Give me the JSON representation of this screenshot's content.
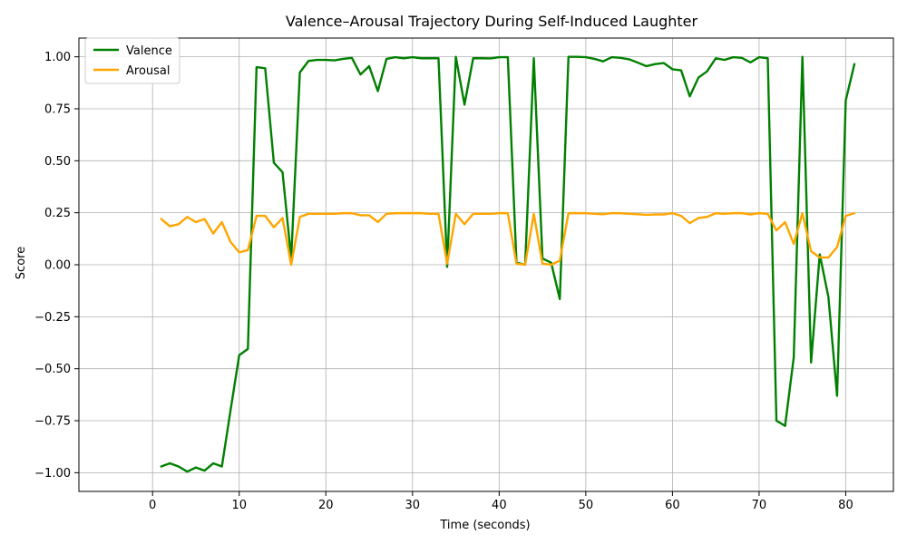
{
  "chart_data": {
    "type": "line",
    "title": "Valence–Arousal Trajectory During Self-Induced Laughter",
    "xlabel": "Time (seconds)",
    "ylabel": "Score",
    "xlim": [
      -8.5,
      85.5
    ],
    "ylim": [
      -1.09,
      1.09
    ],
    "xticks": [
      0,
      10,
      20,
      30,
      40,
      50,
      60,
      70,
      80
    ],
    "yticks": [
      -1.0,
      -0.75,
      -0.5,
      -0.25,
      0.0,
      0.25,
      0.5,
      0.75,
      1.0
    ],
    "xtick_labels": [
      "0",
      "10",
      "20",
      "30",
      "40",
      "50",
      "60",
      "70",
      "80"
    ],
    "ytick_labels": [
      "−1.00",
      "−0.75",
      "−0.50",
      "−0.25",
      "0.00",
      "0.25",
      "0.50",
      "0.75",
      "1.00"
    ],
    "grid": true,
    "legend_position": "top-left",
    "x": [
      1,
      2,
      3,
      4,
      5,
      6,
      7,
      8,
      9,
      10,
      11,
      12,
      13,
      14,
      15,
      16,
      17,
      18,
      19,
      20,
      21,
      22,
      23,
      24,
      25,
      26,
      27,
      28,
      29,
      30,
      31,
      32,
      33,
      34,
      35,
      36,
      37,
      38,
      39,
      40,
      41,
      42,
      43,
      44,
      45,
      46,
      47,
      48,
      49,
      50,
      51,
      52,
      53,
      54,
      55,
      56,
      57,
      58,
      59,
      60,
      61,
      62,
      63,
      64,
      65,
      66,
      67,
      68,
      69,
      70,
      71,
      72,
      73,
      74,
      75,
      76,
      77,
      78,
      79,
      80,
      81
    ],
    "series": [
      {
        "name": "Valence",
        "color": "#008000",
        "values": [
          -0.97,
          -0.955,
          -0.97,
          -0.995,
          -0.975,
          -0.99,
          -0.955,
          -0.97,
          -0.7,
          -0.435,
          -0.405,
          0.95,
          0.945,
          0.49,
          0.445,
          0.03,
          0.925,
          0.98,
          0.985,
          0.985,
          0.983,
          0.99,
          0.995,
          0.915,
          0.955,
          0.835,
          0.99,
          0.998,
          0.993,
          0.998,
          0.993,
          0.993,
          0.993,
          -0.01,
          1.0,
          0.77,
          0.993,
          0.993,
          0.992,
          0.998,
          0.998,
          0.01,
          0.0,
          0.993,
          0.03,
          0.01,
          -0.165,
          1.0,
          1.0,
          0.998,
          0.99,
          0.978,
          0.998,
          0.995,
          0.988,
          0.972,
          0.955,
          0.965,
          0.97,
          0.94,
          0.935,
          0.81,
          0.9,
          0.93,
          0.993,
          0.985,
          0.998,
          0.995,
          0.973,
          0.998,
          0.993,
          -0.75,
          -0.775,
          -0.445,
          1.0,
          -0.47,
          0.05,
          -0.155,
          -0.63,
          0.79,
          0.965
        ]
      },
      {
        "name": "Arousal",
        "color": "#FFA500",
        "values": [
          0.22,
          0.185,
          0.195,
          0.23,
          0.205,
          0.22,
          0.15,
          0.205,
          0.11,
          0.06,
          0.07,
          0.235,
          0.235,
          0.18,
          0.225,
          0.0,
          0.23,
          0.245,
          0.245,
          0.245,
          0.245,
          0.248,
          0.248,
          0.238,
          0.238,
          0.205,
          0.245,
          0.248,
          0.248,
          0.248,
          0.248,
          0.245,
          0.245,
          0.005,
          0.245,
          0.195,
          0.245,
          0.245,
          0.245,
          0.248,
          0.248,
          0.005,
          0.0,
          0.245,
          0.005,
          0.0,
          0.02,
          0.248,
          0.248,
          0.248,
          0.245,
          0.243,
          0.248,
          0.248,
          0.245,
          0.243,
          0.24,
          0.242,
          0.242,
          0.248,
          0.235,
          0.2,
          0.225,
          0.23,
          0.248,
          0.245,
          0.248,
          0.248,
          0.242,
          0.248,
          0.245,
          0.165,
          0.205,
          0.1,
          0.248,
          0.065,
          0.035,
          0.035,
          0.085,
          0.235,
          0.248
        ]
      }
    ]
  }
}
